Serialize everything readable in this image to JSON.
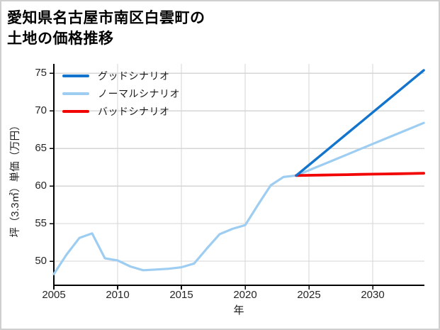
{
  "header": {
    "title_line1": "愛知県名古屋市南区白雲町の",
    "title_line2": "土地の価格推移"
  },
  "chart_data": {
    "type": "line",
    "title": "愛知県名古屋市南区白雲町の土地の価格推移",
    "xlabel": "年",
    "ylabel": "坪（3.3㎡）単価（万円）",
    "xlim": [
      2005,
      2034.05
    ],
    "ylim": [
      46.8,
      76.25
    ],
    "xticks": [
      "2005",
      "2010",
      "2015",
      "2020",
      "2025",
      "2030"
    ],
    "xtick_values": [
      2005,
      2010,
      2015,
      2020,
      2025,
      2030
    ],
    "yticks": [
      "50",
      "55",
      "60",
      "65",
      "70",
      "75"
    ],
    "ytick_values": [
      50,
      55,
      60,
      65,
      70,
      75
    ],
    "grid": true,
    "legend_position": "upper-left",
    "colors": {
      "good": "#1274cc",
      "normal": "#9ecdf2",
      "bad": "#f20000",
      "gridline": "#d6d6d6",
      "axis": "#000000",
      "tick_label": "#262626",
      "border": "#cfcfcf"
    },
    "series": [
      {
        "key": "good",
        "name": "グッドシナリオ",
        "color": "#1274cc",
        "x": [
          2024,
          2025,
          2026,
          2027,
          2028,
          2029,
          2030,
          2031,
          2032,
          2033,
          2034
        ],
        "values": [
          61.4,
          62.8,
          64.2,
          65.6,
          67.0,
          68.4,
          69.8,
          71.2,
          72.6,
          74.0,
          75.4
        ]
      },
      {
        "key": "normal",
        "name": "ノーマルシナリオ",
        "color": "#9ecdf2",
        "x": [
          2005,
          2006,
          2007,
          2008,
          2009,
          2010,
          2011,
          2012,
          2013,
          2014,
          2015,
          2016,
          2017,
          2018,
          2019,
          2020,
          2021,
          2022,
          2023,
          2024,
          2025,
          2026,
          2027,
          2028,
          2029,
          2030,
          2031,
          2032,
          2033,
          2034
        ],
        "values": [
          48.3,
          50.9,
          53.1,
          53.7,
          50.4,
          50.1,
          49.3,
          48.8,
          48.9,
          49.0,
          49.2,
          49.7,
          51.7,
          53.6,
          54.3,
          54.8,
          57.5,
          60.1,
          61.2,
          61.4,
          62.1,
          62.8,
          63.5,
          64.2,
          64.9,
          65.6,
          66.3,
          67.0,
          67.7,
          68.4
        ]
      },
      {
        "key": "bad",
        "name": "バッドシナリオ",
        "color": "#f20000",
        "x": [
          2024,
          2025,
          2026,
          2027,
          2028,
          2029,
          2030,
          2031,
          2032,
          2033,
          2034
        ],
        "values": [
          61.4,
          61.43,
          61.46,
          61.49,
          61.52,
          61.55,
          61.58,
          61.61,
          61.64,
          61.67,
          61.7
        ]
      }
    ]
  }
}
